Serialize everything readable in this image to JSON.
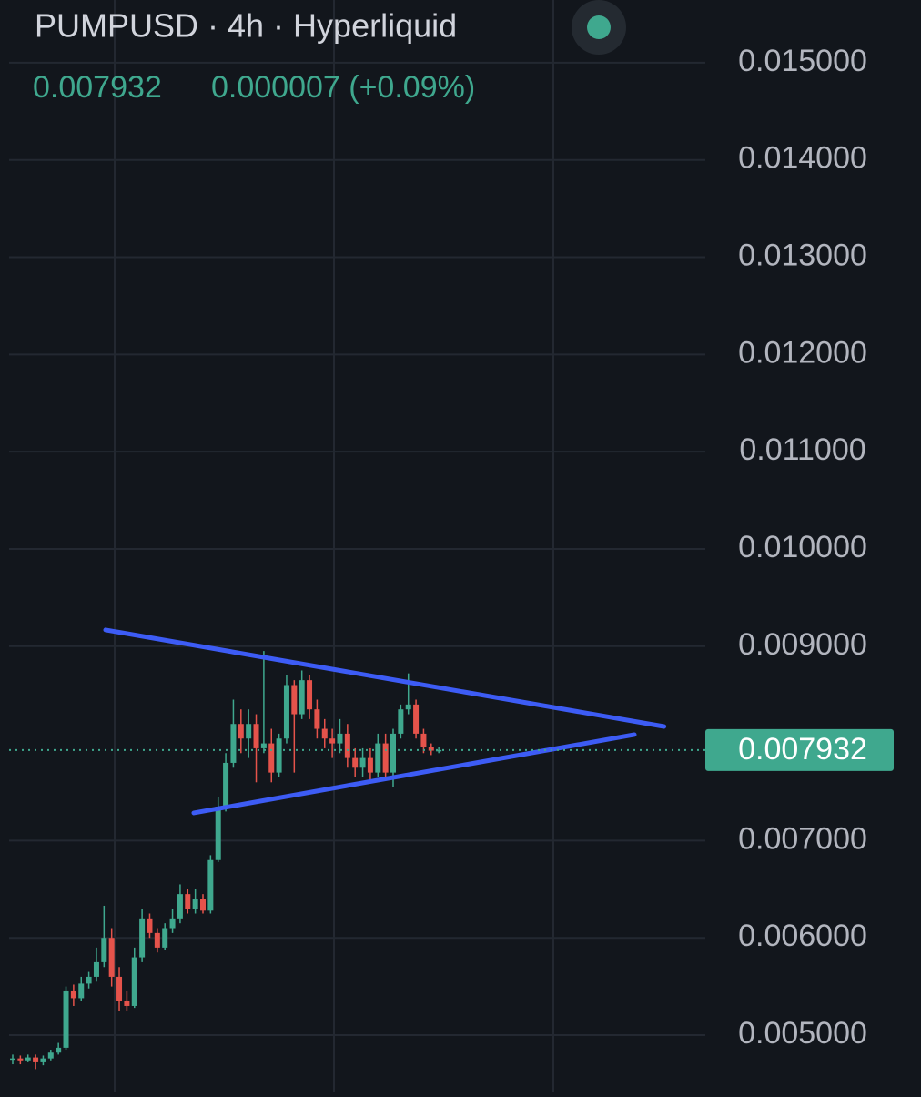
{
  "chart_data": {
    "type": "candlestick",
    "title": "PUMPUSD · 4h · Hyperliquid",
    "last": 0.007932,
    "change": "0.000007 (+0.09%)",
    "up_color": "#3fa88e",
    "down_color": "#e5534b",
    "open": [
      0.00475,
      0.00476,
      0.00474,
      0.00477,
      0.00472,
      0.00476,
      0.00482,
      0.00487,
      0.00545,
      0.00538,
      0.00553,
      0.0056,
      0.00575,
      0.006,
      0.0056,
      0.00535,
      0.0053,
      0.0058,
      0.0062,
      0.00605,
      0.0059,
      0.0061,
      0.0062,
      0.00645,
      0.0063,
      0.0064,
      0.00628,
      0.0068,
      0.00735,
      0.0078,
      0.0082,
      0.00805,
      0.0082,
      0.00795,
      0.008,
      0.0077,
      0.00805,
      0.0086,
      0.0083,
      0.00865,
      0.00835,
      0.00815,
      0.00805,
      0.008,
      0.0081,
      0.00785,
      0.00775,
      0.00785,
      0.0077,
      0.008,
      0.0077,
      0.0081,
      0.00835,
      0.0084,
      0.0081,
      0.00796,
      0.007925
    ],
    "high": [
      0.0048,
      0.00479,
      0.0048,
      0.0048,
      0.00479,
      0.00485,
      0.00492,
      0.0055,
      0.00552,
      0.0056,
      0.00565,
      0.0059,
      0.00633,
      0.0061,
      0.0057,
      0.00545,
      0.0059,
      0.0063,
      0.00625,
      0.0061,
      0.00615,
      0.0063,
      0.00655,
      0.0065,
      0.0065,
      0.00645,
      0.00685,
      0.00745,
      0.0079,
      0.00845,
      0.00835,
      0.00835,
      0.0083,
      0.00895,
      0.00815,
      0.0081,
      0.0087,
      0.00865,
      0.00875,
      0.0087,
      0.00845,
      0.00825,
      0.00815,
      0.00825,
      0.0082,
      0.00795,
      0.00795,
      0.00795,
      0.0081,
      0.0081,
      0.00815,
      0.0084,
      0.00872,
      0.00845,
      0.00815,
      0.008,
      0.00796
    ],
    "low": [
      0.0047,
      0.0047,
      0.00472,
      0.00465,
      0.00469,
      0.00474,
      0.0048,
      0.00485,
      0.0053,
      0.00535,
      0.00548,
      0.00555,
      0.0057,
      0.0055,
      0.00525,
      0.00525,
      0.00528,
      0.00575,
      0.006,
      0.00585,
      0.00588,
      0.00605,
      0.00615,
      0.00625,
      0.00625,
      0.00625,
      0.00625,
      0.00678,
      0.0073,
      0.00775,
      0.0079,
      0.00785,
      0.0076,
      0.0079,
      0.0076,
      0.00765,
      0.008,
      0.0077,
      0.00825,
      0.00825,
      0.00805,
      0.00795,
      0.00785,
      0.0079,
      0.00775,
      0.00765,
      0.00765,
      0.0076,
      0.00765,
      0.00765,
      0.00755,
      0.00805,
      0.0083,
      0.00805,
      0.0079,
      0.00788,
      0.0079
    ],
    "close": [
      0.00476,
      0.00474,
      0.00477,
      0.00472,
      0.00476,
      0.00482,
      0.00487,
      0.00545,
      0.00538,
      0.00553,
      0.0056,
      0.00575,
      0.006,
      0.0056,
      0.00535,
      0.0053,
      0.0058,
      0.0062,
      0.00605,
      0.0059,
      0.0061,
      0.0062,
      0.00645,
      0.0063,
      0.0064,
      0.00628,
      0.0068,
      0.00735,
      0.0078,
      0.0082,
      0.00805,
      0.0082,
      0.00795,
      0.008,
      0.0077,
      0.00805,
      0.0086,
      0.0083,
      0.00865,
      0.00835,
      0.00815,
      0.00805,
      0.008,
      0.0081,
      0.00785,
      0.00775,
      0.00785,
      0.0077,
      0.008,
      0.0077,
      0.0081,
      0.00835,
      0.0084,
      0.0081,
      0.00796,
      0.007925,
      0.007932
    ],
    "ylim": [
      0.004738,
      0.015645
    ],
    "yticks": [
      {
        "value": 0.015,
        "label": "0.015000"
      },
      {
        "value": 0.014,
        "label": "0.014000"
      },
      {
        "value": 0.013,
        "label": "0.013000"
      },
      {
        "value": 0.012,
        "label": "0.012000"
      },
      {
        "value": 0.011,
        "label": "0.011000"
      },
      {
        "value": 0.01,
        "label": "0.010000"
      },
      {
        "value": 0.009,
        "label": "0.009000"
      },
      {
        "value": 0.007,
        "label": "0.007000"
      },
      {
        "value": 0.006,
        "label": "0.006000"
      },
      {
        "value": 0.005,
        "label": "0.005000"
      }
    ],
    "grid": true,
    "trendlines": [
      {
        "color": "#3d5cf5",
        "x": [
          12.2,
          85.6
        ],
        "y": [
          0.009167,
          0.008174
        ]
      },
      {
        "color": "#3d5cf5",
        "x": [
          23.8,
          81.7
        ],
        "y": [
          0.007285,
          0.00809
        ]
      }
    ]
  }
}
